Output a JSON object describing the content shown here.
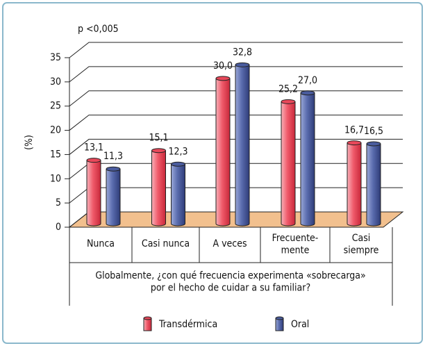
{
  "chart_data": {
    "type": "bar",
    "annotation": "p <0,005",
    "ylabel": "(%)",
    "xlabel": "Globalmente, ¿con qué frecuencia experimenta «sobrecarga»\npor el hecho de cuidar a su familiar?",
    "categories": [
      "Nunca",
      "Casi nunca",
      "A veces",
      "Frecuente-\nmente",
      "Casi\nsiempre"
    ],
    "series": [
      {
        "name": "Transdérmica",
        "color": "#e8485a",
        "values": [
          13.1,
          15.1,
          30.0,
          25.2,
          16.7
        ],
        "value_labels": [
          "13,1",
          "15,1",
          "30,0",
          "25,2",
          "16,7"
        ]
      },
      {
        "name": "Oral",
        "color": "#4a5c9e",
        "values": [
          11.3,
          12.3,
          32.8,
          27.0,
          16.5
        ],
        "value_labels": [
          "11,3",
          "12,3",
          "32,8",
          "27,0",
          "16,5"
        ]
      }
    ],
    "ylim": [
      0,
      35
    ],
    "yticks": [
      0,
      5,
      10,
      15,
      20,
      25,
      30,
      35
    ],
    "grid": true,
    "legend": "bottom"
  }
}
